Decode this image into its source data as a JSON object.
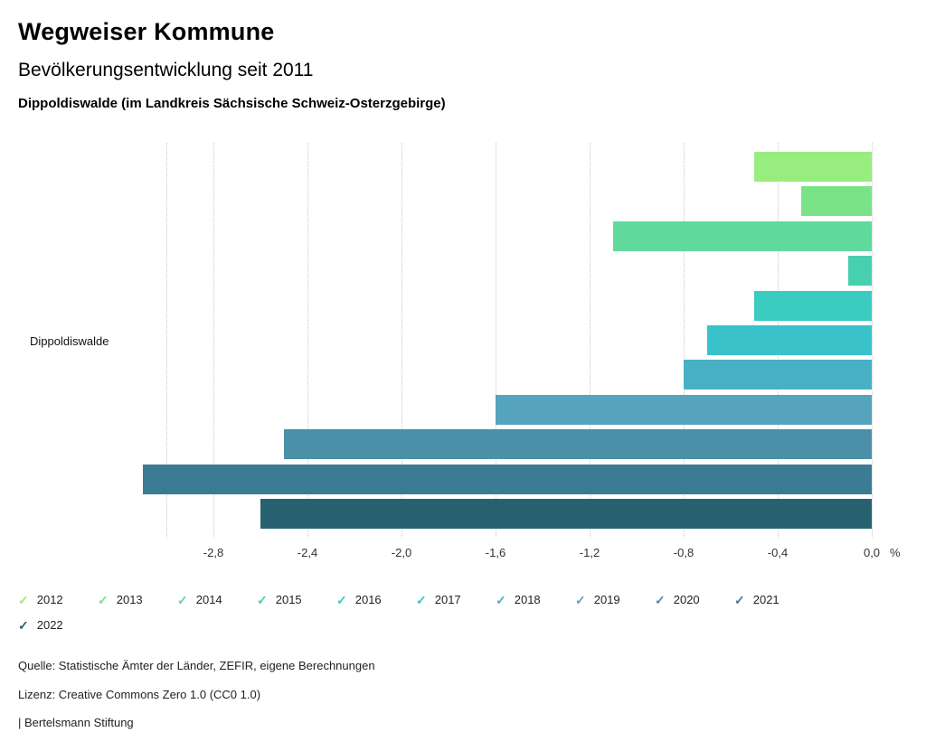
{
  "header": {
    "title": "Wegweiser Kommune",
    "subtitle": "Bevölkerungsentwicklung seit 2011",
    "region": "Dippoldiswalde (im Landkreis Sächsische Schweiz-Osterzgebirge)"
  },
  "chart_data": {
    "type": "bar",
    "orientation": "horizontal",
    "category": "Dippoldiswalde",
    "unit": "%",
    "xlim": [
      -3.1,
      0
    ],
    "grid": true,
    "legend_position": "bottom",
    "series": [
      {
        "name": "2012",
        "value": -0.5,
        "color": "#97ed7e"
      },
      {
        "name": "2013",
        "value": -0.3,
        "color": "#7ae387"
      },
      {
        "name": "2014",
        "value": -1.1,
        "color": "#5fd99c"
      },
      {
        "name": "2015",
        "value": -0.1,
        "color": "#47d0b0"
      },
      {
        "name": "2016",
        "value": -0.5,
        "color": "#3acbc1"
      },
      {
        "name": "2017",
        "value": -0.7,
        "color": "#39c2ca"
      },
      {
        "name": "2018",
        "value": -0.8,
        "color": "#47b0c4"
      },
      {
        "name": "2019",
        "value": -1.6,
        "color": "#55a3bd"
      },
      {
        "name": "2020",
        "value": -2.5,
        "color": "#4b8fa8"
      },
      {
        "name": "2021",
        "value": -3.1,
        "color": "#3c7b94"
      },
      {
        "name": "2022",
        "value": -2.6,
        "color": "#27616f"
      }
    ],
    "ticks": [
      {
        "v": -3.0,
        "label": ""
      },
      {
        "v": -2.8,
        "label": "-2,8"
      },
      {
        "v": -2.4,
        "label": "-2,4"
      },
      {
        "v": -2.0,
        "label": "-2,0"
      },
      {
        "v": -1.6,
        "label": "-1,6"
      },
      {
        "v": -1.2,
        "label": "-1,2"
      },
      {
        "v": -0.8,
        "label": "-0,8"
      },
      {
        "v": -0.4,
        "label": "-0,4"
      },
      {
        "v": 0.0,
        "label": "0,0"
      }
    ],
    "legend_check_glyph": "✓"
  },
  "footer": {
    "source": "Quelle: Statistische Ämter der Länder, ZEFIR, eigene Berechnungen",
    "license": "Lizenz: Creative Commons Zero 1.0 (CC0 1.0)",
    "brand": "| Bertelsmann Stiftung"
  }
}
